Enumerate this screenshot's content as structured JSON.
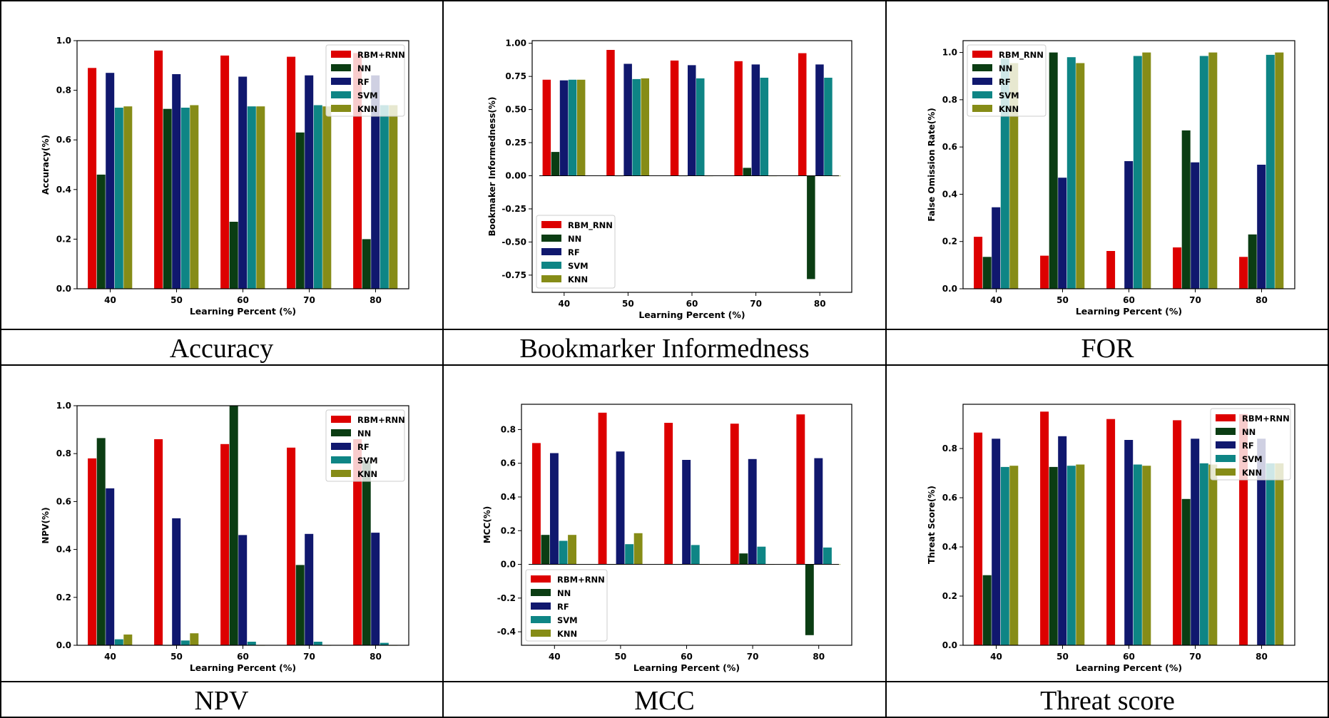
{
  "figure": {
    "captions": [
      "Accuracy",
      "Bookmarker Informedness",
      "FOR",
      "NPV",
      "MCC",
      "Threat score"
    ],
    "series_colors": {
      "RBM": "#dd0000",
      "NN": "#0b3d13",
      "RF": "#10186e",
      "SVM": "#0e8585",
      "KNN": "#868c17"
    }
  },
  "chart_data": [
    {
      "type": "bar",
      "title": "",
      "xlabel": "Learning Percent (%)",
      "ylabel": "Accuracy(%)",
      "categories": [
        "40",
        "50",
        "60",
        "70",
        "80"
      ],
      "ylim": [
        0,
        1.0
      ],
      "yticks": [
        "0.0",
        "0.2",
        "0.4",
        "0.6",
        "0.8",
        "1.0"
      ],
      "legend_position": "upper-right",
      "series": [
        {
          "name": "RBM+RNN",
          "values": [
            0.89,
            0.96,
            0.94,
            0.935,
            0.95
          ]
        },
        {
          "name": "NN",
          "values": [
            0.46,
            0.725,
            0.27,
            0.63,
            0.2
          ]
        },
        {
          "name": "RF",
          "values": [
            0.87,
            0.865,
            0.855,
            0.86,
            0.86
          ]
        },
        {
          "name": "SVM",
          "values": [
            0.73,
            0.73,
            0.735,
            0.74,
            0.74
          ]
        },
        {
          "name": "KNN",
          "values": [
            0.735,
            0.74,
            0.735,
            0.735,
            0.74
          ]
        }
      ]
    },
    {
      "type": "bar",
      "title": "",
      "xlabel": "Learning Percent (%)",
      "ylabel": "Bookmaker Informedness(%)",
      "categories": [
        "40",
        "50",
        "60",
        "70",
        "80"
      ],
      "ylim": [
        -0.88,
        1.02
      ],
      "yticks": [
        "-0.75",
        "-0.50",
        "-0.25",
        "0.00",
        "0.25",
        "0.50",
        "0.75",
        "1.00"
      ],
      "legend_position": "lower-left",
      "series": [
        {
          "name": "RBM_RNN",
          "values": [
            0.725,
            0.95,
            0.87,
            0.865,
            0.925
          ]
        },
        {
          "name": "NN",
          "values": [
            0.18,
            0.0,
            0.0,
            0.06,
            -0.78
          ]
        },
        {
          "name": "RF",
          "values": [
            0.72,
            0.845,
            0.835,
            0.84,
            0.84
          ]
        },
        {
          "name": "SVM",
          "values": [
            0.725,
            0.73,
            0.735,
            0.74,
            0.74
          ]
        },
        {
          "name": "KNN",
          "values": [
            0.725,
            0.735,
            0.0,
            0.0,
            0.0
          ]
        }
      ]
    },
    {
      "type": "bar",
      "title": "",
      "xlabel": "Learning Percent (%)",
      "ylabel": "False Omission Rate(%)",
      "categories": [
        "40",
        "50",
        "60",
        "70",
        "80"
      ],
      "ylim": [
        0,
        1.05
      ],
      "yticks": [
        "0.0",
        "0.2",
        "0.4",
        "0.6",
        "0.8",
        "1.0"
      ],
      "legend_position": "upper-left",
      "series": [
        {
          "name": "RBM_RNN",
          "values": [
            0.22,
            0.14,
            0.16,
            0.175,
            0.135
          ]
        },
        {
          "name": "NN",
          "values": [
            0.135,
            1.0,
            0.0,
            0.67,
            0.23
          ]
        },
        {
          "name": "RF",
          "values": [
            0.345,
            0.47,
            0.54,
            0.535,
            0.525
          ]
        },
        {
          "name": "SVM",
          "values": [
            0.975,
            0.98,
            0.985,
            0.985,
            0.99
          ]
        },
        {
          "name": "KNN",
          "values": [
            0.955,
            0.955,
            1.0,
            1.0,
            1.0
          ]
        }
      ]
    },
    {
      "type": "bar",
      "title": "",
      "xlabel": "Learning Percent (%)",
      "ylabel": "NPV(%)",
      "categories": [
        "40",
        "50",
        "60",
        "70",
        "80"
      ],
      "ylim": [
        0,
        1.0
      ],
      "yticks": [
        "0.0",
        "0.2",
        "0.4",
        "0.6",
        "0.8",
        "1.0"
      ],
      "legend_position": "upper-right",
      "series": [
        {
          "name": "RBM+RNN",
          "values": [
            0.78,
            0.86,
            0.84,
            0.825,
            0.86
          ]
        },
        {
          "name": "NN",
          "values": [
            0.865,
            0.0,
            1.0,
            0.335,
            0.77
          ]
        },
        {
          "name": "RF",
          "values": [
            0.655,
            0.53,
            0.46,
            0.465,
            0.47
          ]
        },
        {
          "name": "SVM",
          "values": [
            0.025,
            0.02,
            0.015,
            0.015,
            0.01
          ]
        },
        {
          "name": "KNN",
          "values": [
            0.045,
            0.05,
            0.0,
            0.0,
            0.0
          ]
        }
      ]
    },
    {
      "type": "bar",
      "title": "",
      "xlabel": "Learning Percent (%)",
      "ylabel": "MCC(%)",
      "categories": [
        "40",
        "50",
        "60",
        "70",
        "80"
      ],
      "ylim": [
        -0.48,
        0.95
      ],
      "yticks": [
        "-0.4",
        "-0.2",
        "0.0",
        "0.2",
        "0.4",
        "0.6",
        "0.8"
      ],
      "legend_position": "lower-left",
      "series": [
        {
          "name": "RBM+RNN",
          "values": [
            0.72,
            0.9,
            0.84,
            0.835,
            0.89
          ]
        },
        {
          "name": "NN",
          "values": [
            0.175,
            0.0,
            0.0,
            0.065,
            -0.42
          ]
        },
        {
          "name": "RF",
          "values": [
            0.66,
            0.67,
            0.62,
            0.625,
            0.63
          ]
        },
        {
          "name": "SVM",
          "values": [
            0.14,
            0.12,
            0.115,
            0.105,
            0.1
          ]
        },
        {
          "name": "KNN",
          "values": [
            0.175,
            0.185,
            0.0,
            0.0,
            0.0
          ]
        }
      ]
    },
    {
      "type": "bar",
      "title": "",
      "xlabel": "Learning Percent (%)",
      "ylabel": "Threat Score(%)",
      "categories": [
        "40",
        "50",
        "60",
        "70",
        "80"
      ],
      "ylim": [
        0,
        0.98
      ],
      "yticks": [
        "0.0",
        "0.2",
        "0.4",
        "0.6",
        "0.8"
      ],
      "legend_position": "upper-right",
      "series": [
        {
          "name": "RBM+RNN",
          "values": [
            0.865,
            0.95,
            0.92,
            0.915,
            0.94
          ]
        },
        {
          "name": "NN",
          "values": [
            0.285,
            0.725,
            0.0,
            0.595,
            0.0
          ]
        },
        {
          "name": "RF",
          "values": [
            0.84,
            0.85,
            0.835,
            0.84,
            0.84
          ]
        },
        {
          "name": "SVM",
          "values": [
            0.725,
            0.73,
            0.735,
            0.74,
            0.74
          ]
        },
        {
          "name": "KNN",
          "values": [
            0.73,
            0.735,
            0.73,
            0.735,
            0.74
          ]
        }
      ]
    }
  ]
}
